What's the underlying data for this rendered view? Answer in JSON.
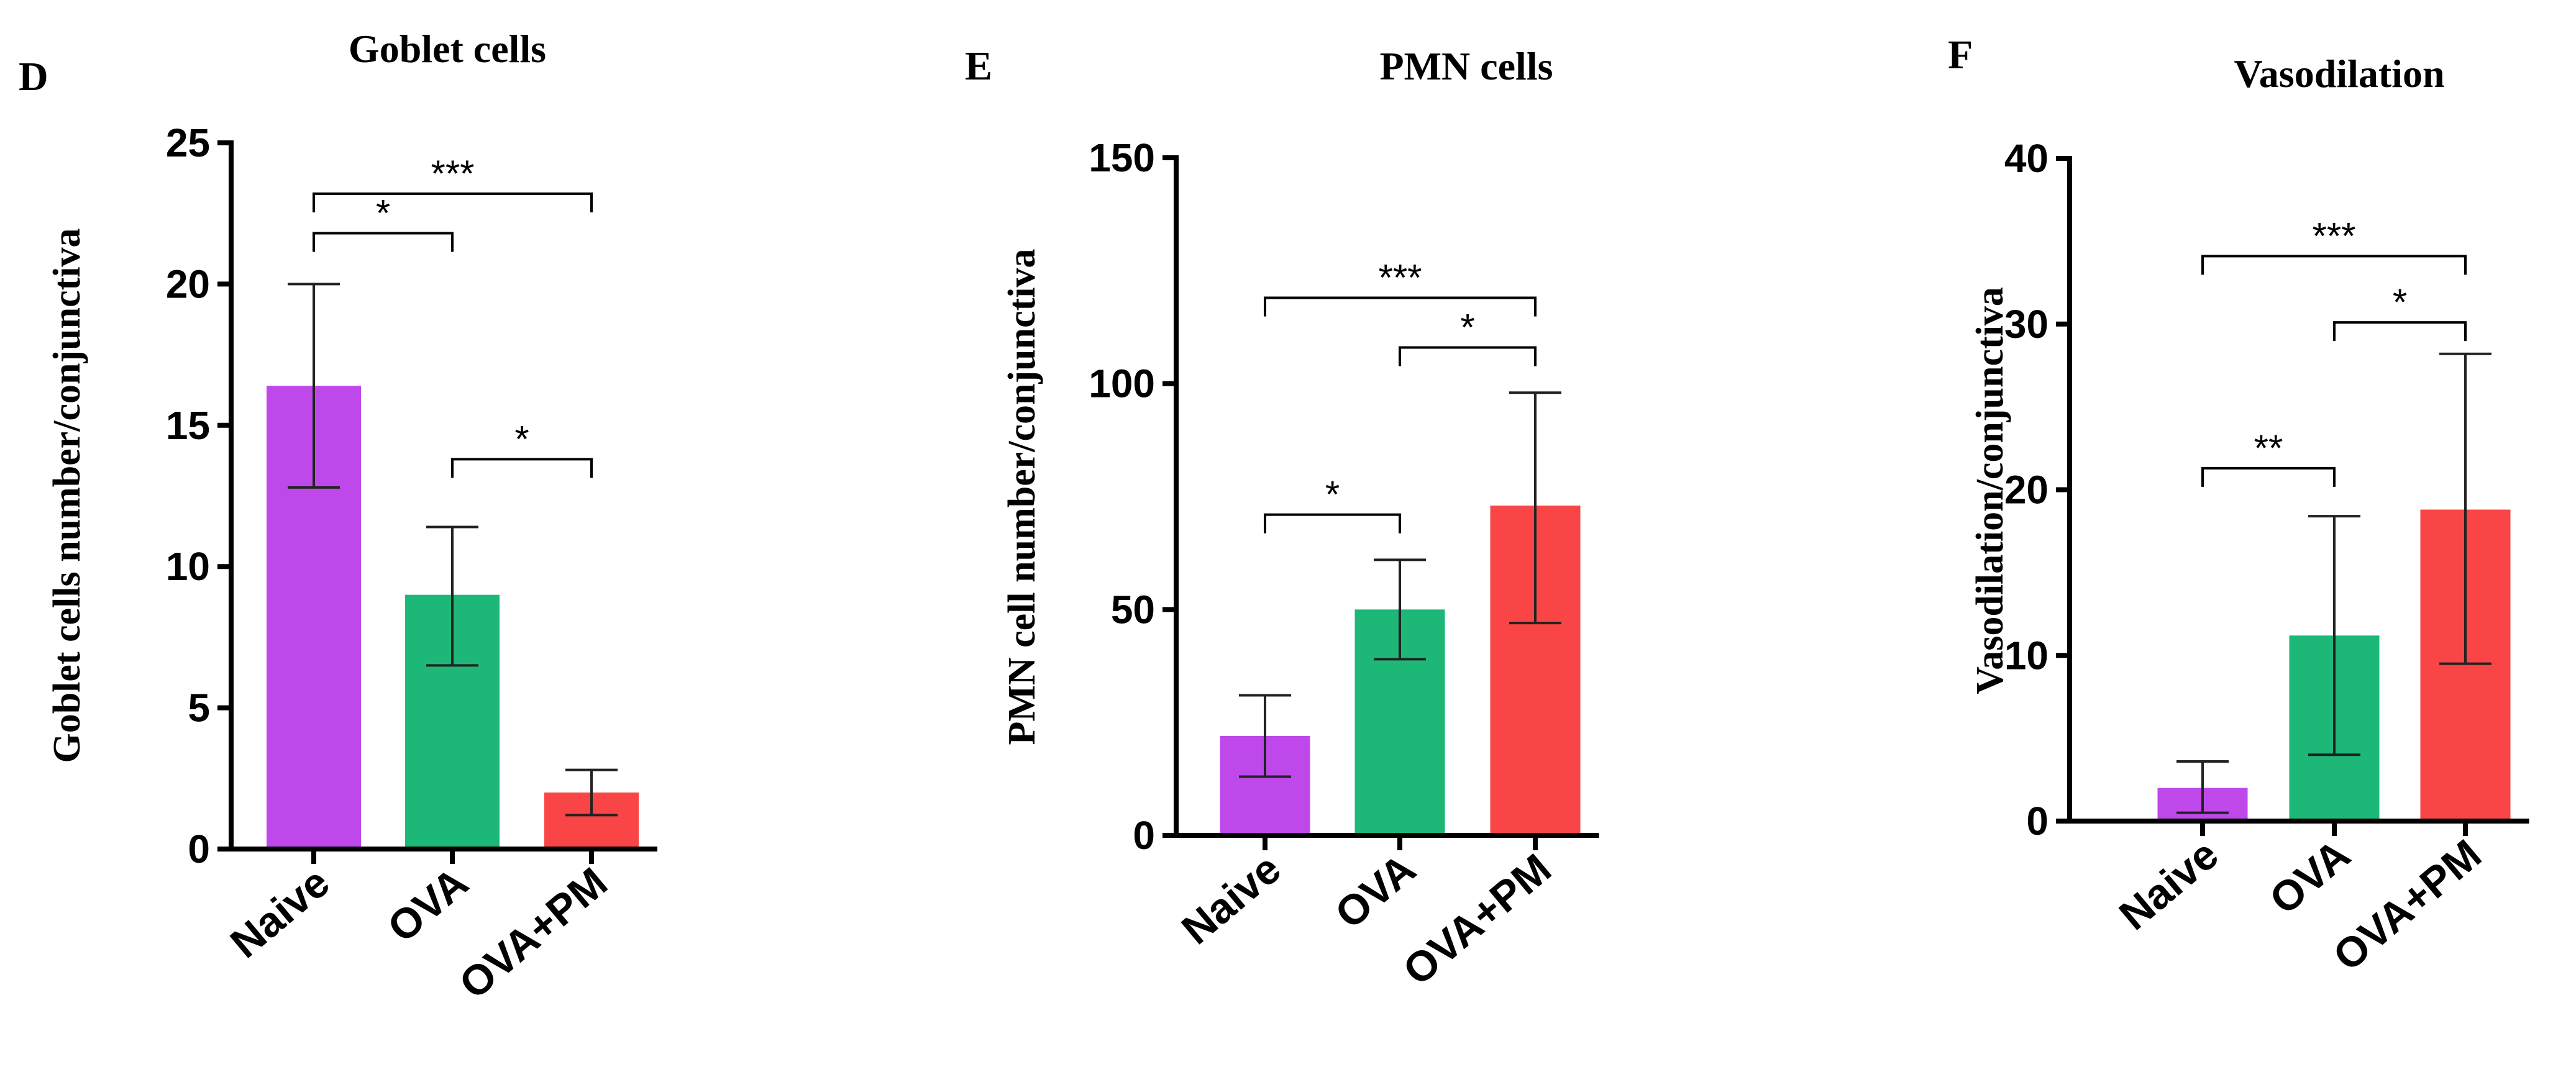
{
  "chart_data": [
    {
      "type": "bar",
      "panel": "D",
      "title": "Goblet cells",
      "ylabel": "Goblet cells number/conjunctiva",
      "xlabel": "",
      "categories": [
        "Naive",
        "OVA",
        "OVA+PM"
      ],
      "values": [
        16.4,
        9.0,
        2.0
      ],
      "errors_low": [
        12.8,
        6.5,
        1.2
      ],
      "errors_high": [
        20.0,
        11.4,
        2.8
      ],
      "colors": [
        "#bf48ea",
        "#1db877",
        "#f94545"
      ],
      "ylim": [
        0,
        25
      ],
      "yticks": [
        0,
        5,
        10,
        15,
        20,
        25
      ],
      "ytick_labels": [
        "0",
        "5",
        "10",
        "15",
        "20",
        "25"
      ],
      "significance": [
        {
          "from": 0,
          "to": 1,
          "label": "*",
          "y": 21.8
        },
        {
          "from": 0,
          "to": 2,
          "label": "***",
          "y": 23.2
        },
        {
          "from": 1,
          "to": 2,
          "label": "*",
          "y": 13.8
        }
      ]
    },
    {
      "type": "bar",
      "panel": "E",
      "title": "PMN cells",
      "ylabel": "PMN cell number/conjunctiva",
      "xlabel": "",
      "categories": [
        "Naive",
        "OVA",
        "OVA+PM"
      ],
      "values": [
        22,
        50,
        73
      ],
      "errors_low": [
        13,
        39,
        47
      ],
      "errors_high": [
        31,
        61,
        98
      ],
      "colors": [
        "#bf48ea",
        "#1db877",
        "#f94545"
      ],
      "ylim": [
        0,
        150
      ],
      "yticks": [
        0,
        50,
        100,
        150
      ],
      "ytick_labels": [
        "0",
        "50",
        "100",
        "150"
      ],
      "significance": [
        {
          "from": 0,
          "to": 1,
          "label": "*",
          "y": 71
        },
        {
          "from": 1,
          "to": 2,
          "label": "*",
          "y": 108
        },
        {
          "from": 0,
          "to": 2,
          "label": "***",
          "y": 119
        }
      ]
    },
    {
      "type": "bar",
      "panel": "F",
      "title": "Vasodilation",
      "ylabel": "Vasodilation/conjunctiva",
      "xlabel": "",
      "categories": [
        "Naive",
        "OVA",
        "OVA+PM"
      ],
      "values": [
        2.0,
        11.2,
        18.8
      ],
      "errors_low": [
        0.5,
        4.0,
        9.5
      ],
      "errors_high": [
        3.6,
        18.4,
        28.2
      ],
      "colors": [
        "#bf48ea",
        "#1db877",
        "#f94545"
      ],
      "ylim": [
        0,
        40
      ],
      "yticks": [
        0,
        10,
        20,
        30,
        40
      ],
      "ytick_labels": [
        "0",
        "10",
        "20",
        "30",
        "40"
      ],
      "significance": [
        {
          "from": 0,
          "to": 1,
          "label": "**",
          "y": 21.3
        },
        {
          "from": 1,
          "to": 2,
          "label": "*",
          "y": 30.1
        },
        {
          "from": 0,
          "to": 2,
          "label": "***",
          "y": 34.1
        }
      ]
    }
  ]
}
